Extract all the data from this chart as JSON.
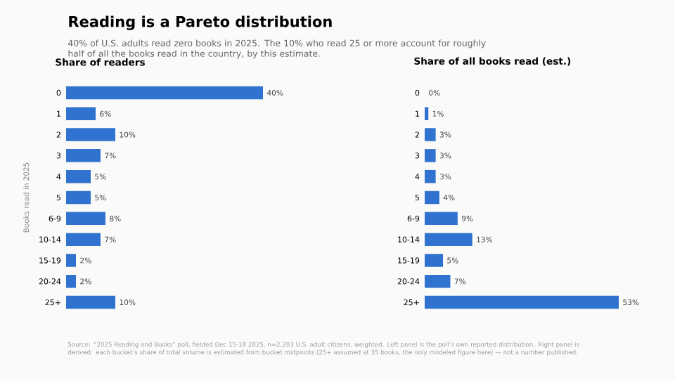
{
  "chart_data": [
    {
      "type": "other",
      "title": "Reading is a Pareto distribution",
      "subtitle": "40% of U.S. adults read zero books in 2025. The 10% who read 25 or more account for roughly half of all the books read in the country, by this estimate.",
      "annotations": [
        "Source: “2025 Reading and Books” poll, fielded Dec 15-18 2025, n=2,203 U.S. adult citizens, weighted. Left panel is the poll’s own reported distribution. Right panel is derived: each bucket’s share of total volume is estimated from bucket midpoints (25+ assumed at 35 books, the only modeled figure here) — not a number published."
      ]
    },
    {
      "type": "bar",
      "orientation": "horizontal",
      "title": "Share of readers",
      "ylabel": "Books read in 2025",
      "categories": [
        "0",
        "1",
        "2",
        "3",
        "4",
        "5",
        "6-9",
        "10-14",
        "15-19",
        "20-24",
        "25+"
      ],
      "values": [
        40,
        6,
        10,
        7,
        5,
        5,
        8,
        7,
        2,
        2,
        10
      ],
      "value_labels": [
        "40%",
        "6%",
        "10%",
        "7%",
        "5%",
        "5%",
        "8%",
        "7%",
        "2%",
        "2%",
        "10%"
      ],
      "color": "#2f72d0",
      "tick_labels": "y"
    },
    {
      "type": "bar",
      "orientation": "horizontal",
      "title": "Share of all books read (est.)",
      "categories": [
        "0",
        "1",
        "2",
        "3",
        "4",
        "5",
        "6-9",
        "10-14",
        "15-19",
        "20-24",
        "25+"
      ],
      "values": [
        0,
        1,
        3,
        3,
        3,
        4,
        9,
        13,
        5,
        7,
        53
      ],
      "value_labels": [
        "0%",
        "1%",
        "3%",
        "3%",
        "3%",
        "4%",
        "9%",
        "13%",
        "5%",
        "7%",
        "53%"
      ],
      "color": "#2f72d0",
      "tick_labels": "y"
    }
  ]
}
